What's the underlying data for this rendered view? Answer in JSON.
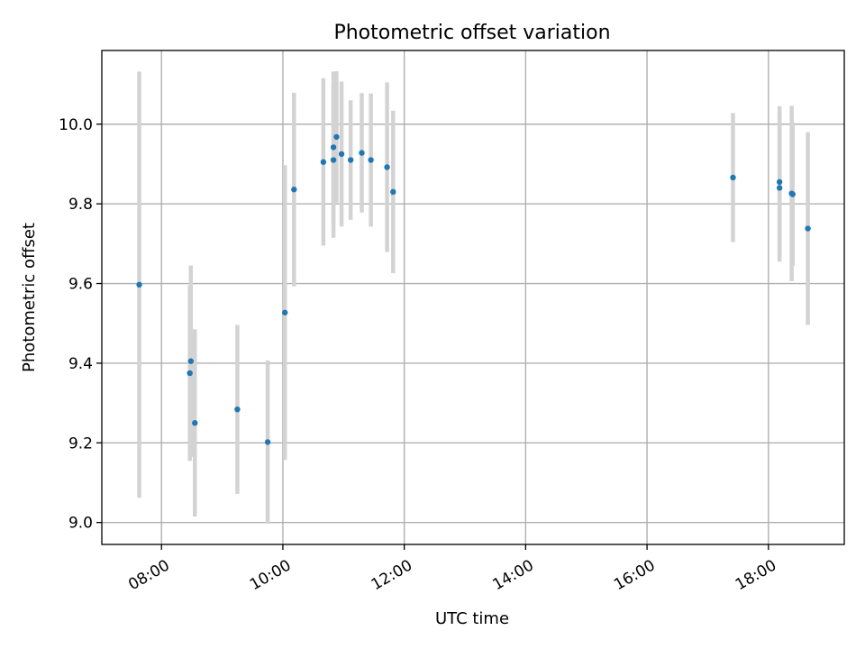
{
  "chart_data": {
    "type": "scatter",
    "title": "Photometric offset variation",
    "xlabel": "UTC time",
    "ylabel": "Photometric offset",
    "x_axis": {
      "kind": "time",
      "range": [
        "07:01",
        "19:15"
      ],
      "ticks": [
        "08:00",
        "10:00",
        "12:00",
        "14:00",
        "16:00",
        "18:00"
      ]
    },
    "y_axis": {
      "range": [
        8.945,
        10.185
      ],
      "ticks": [
        9.0,
        9.2,
        9.4,
        9.6,
        9.8,
        10.0
      ],
      "tick_labels": [
        "9.0",
        "9.2",
        "9.4",
        "9.6",
        "9.8",
        "10.0"
      ]
    },
    "grid": true,
    "colors": {
      "point": "#1f77b4",
      "error_bar": "#d3d3d3"
    },
    "points": [
      {
        "x": "07:38",
        "y": 9.597,
        "err": 0.535
      },
      {
        "x": "08:28",
        "y": 9.375,
        "err": 0.22
      },
      {
        "x": "08:29",
        "y": 9.405,
        "err": 0.24
      },
      {
        "x": "08:33",
        "y": 9.25,
        "err": 0.235
      },
      {
        "x": "09:15",
        "y": 9.284,
        "err": 0.212
      },
      {
        "x": "09:45",
        "y": 9.202,
        "err": 0.205
      },
      {
        "x": "10:02",
        "y": 9.527,
        "err": 0.37
      },
      {
        "x": "10:11",
        "y": 9.836,
        "err": 0.243
      },
      {
        "x": "10:40",
        "y": 9.905,
        "err": 0.21
      },
      {
        "x": "10:50",
        "y": 9.91,
        "err": 0.195
      },
      {
        "x": "10:50",
        "y": 9.942,
        "err": 0.19
      },
      {
        "x": "10:53",
        "y": 9.968,
        "err": 0.165
      },
      {
        "x": "10:58",
        "y": 9.925,
        "err": 0.182
      },
      {
        "x": "11:07",
        "y": 9.91,
        "err": 0.15
      },
      {
        "x": "11:18",
        "y": 9.928,
        "err": 0.15
      },
      {
        "x": "11:27",
        "y": 9.91,
        "err": 0.167
      },
      {
        "x": "11:43",
        "y": 9.892,
        "err": 0.213
      },
      {
        "x": "11:49",
        "y": 9.83,
        "err": 0.204
      },
      {
        "x": "17:25",
        "y": 9.866,
        "err": 0.162
      },
      {
        "x": "18:11",
        "y": 9.855,
        "err": 0.19
      },
      {
        "x": "18:11",
        "y": 9.84,
        "err": 0.185
      },
      {
        "x": "18:23",
        "y": 9.826,
        "err": 0.22
      },
      {
        "x": "18:24",
        "y": 9.824,
        "err": 0.18
      },
      {
        "x": "18:39",
        "y": 9.738,
        "err": 0.242
      }
    ]
  }
}
